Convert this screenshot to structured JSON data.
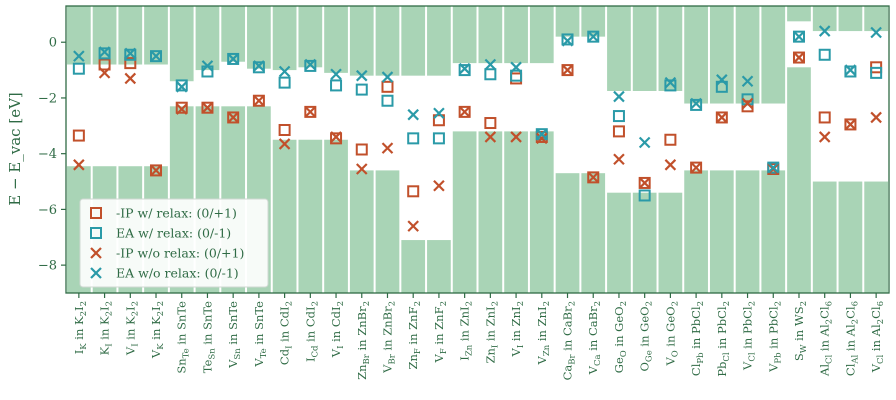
{
  "chart_data": {
    "type": "bar-scatter",
    "ylabel": "E − E_vac [eV]",
    "ylim": [
      -9,
      1.3
    ],
    "yticks": [
      0,
      -2,
      -4,
      -6,
      -8
    ],
    "colors": {
      "bar": "#a9d4b6",
      "ip": "#c1502b",
      "ea": "#2a9aa8",
      "axis": "#2f6b45"
    },
    "legend_position": "lower-left",
    "series": [
      {
        "key": "ip_relax",
        "name": "-IP w/ relax: (0/+1)",
        "marker": "square",
        "color": "#c1502b"
      },
      {
        "key": "ea_relax",
        "name": "EA w/ relax: (0/-1)",
        "marker": "square",
        "color": "#2a9aa8"
      },
      {
        "key": "ip_norelax",
        "name": "-IP w/o relax: (0/+1)",
        "marker": "x",
        "color": "#c1502b"
      },
      {
        "key": "ea_norelax",
        "name": "EA w/o relax: (0/-1)",
        "marker": "x",
        "color": "#2a9aa8"
      }
    ],
    "categories": [
      {
        "def": "I",
        "sub": "K",
        "host": "K",
        "hs": "2",
        "host2": "I",
        "hs2": "2",
        "vbm": -4.45,
        "cbm": -0.8,
        "ip_relax": -3.35,
        "ea_relax": -0.95,
        "ip_norelax": -4.4,
        "ea_norelax": -0.5
      },
      {
        "def": "K",
        "sub": "I",
        "host": "K",
        "hs": "2",
        "host2": "I",
        "hs2": "2",
        "vbm": -4.45,
        "cbm": -0.8,
        "ip_relax": -0.8,
        "ea_relax": -0.4,
        "ip_norelax": -1.1,
        "ea_norelax": -0.35
      },
      {
        "def": "V",
        "sub": "I",
        "host": "K",
        "hs": "2",
        "host2": "I",
        "hs2": "2",
        "vbm": -4.45,
        "cbm": -0.8,
        "ip_relax": -0.75,
        "ea_relax": -0.45,
        "ip_norelax": -1.3,
        "ea_norelax": -0.4
      },
      {
        "def": "V",
        "sub": "K",
        "host": "K",
        "hs": "2",
        "host2": "I",
        "hs2": "2",
        "vbm": -4.45,
        "cbm": -0.8,
        "ip_relax": -4.6,
        "ea_relax": -0.5,
        "ip_norelax": -4.6,
        "ea_norelax": -0.5
      },
      {
        "def": "Sn",
        "sub": "Te",
        "host": "SnTe",
        "hs": "",
        "host2": "",
        "hs2": "",
        "vbm": -2.3,
        "cbm": -1.4,
        "ip_relax": -2.35,
        "ea_relax": -1.55,
        "ip_norelax": -2.4,
        "ea_norelax": -1.6
      },
      {
        "def": "Te",
        "sub": "Sn",
        "host": "SnTe",
        "hs": "",
        "host2": "",
        "hs2": "",
        "vbm": -2.3,
        "cbm": -1.0,
        "ip_relax": -2.35,
        "ea_relax": -1.05,
        "ip_norelax": -2.35,
        "ea_norelax": -0.85
      },
      {
        "def": "V",
        "sub": "Sn",
        "host": "SnTe",
        "hs": "",
        "host2": "",
        "hs2": "",
        "vbm": -2.3,
        "cbm": -0.7,
        "ip_relax": -2.7,
        "ea_relax": -0.6,
        "ip_norelax": -2.7,
        "ea_norelax": -0.6
      },
      {
        "def": "V",
        "sub": "Te",
        "host": "SnTe",
        "hs": "",
        "host2": "",
        "hs2": "",
        "vbm": -2.3,
        "cbm": -0.95,
        "ip_relax": -2.1,
        "ea_relax": -0.9,
        "ip_norelax": -2.1,
        "ea_norelax": -0.85
      },
      {
        "def": "Cd",
        "sub": "I",
        "host": "CdI",
        "hs": "2",
        "host2": "",
        "hs2": "",
        "vbm": -3.5,
        "cbm": -1.0,
        "ip_relax": -3.15,
        "ea_relax": -1.45,
        "ip_norelax": -3.65,
        "ea_norelax": -1.05
      },
      {
        "def": "I",
        "sub": "Cd",
        "host": "CdI",
        "hs": "2",
        "host2": "",
        "hs2": "",
        "vbm": -3.5,
        "cbm": -0.9,
        "ip_relax": -2.5,
        "ea_relax": -0.85,
        "ip_norelax": -2.5,
        "ea_norelax": -0.8
      },
      {
        "def": "V",
        "sub": "I",
        "host": "CdI",
        "hs": "2",
        "host2": "",
        "hs2": "",
        "vbm": -3.5,
        "cbm": -1.1,
        "ip_relax": -3.45,
        "ea_relax": -1.55,
        "ip_norelax": -3.4,
        "ea_norelax": -1.15
      },
      {
        "def": "Zn",
        "sub": "Br",
        "host": "ZnBr",
        "hs": "2",
        "host2": "",
        "hs2": "",
        "vbm": -4.6,
        "cbm": -1.2,
        "ip_relax": -3.85,
        "ea_relax": -1.7,
        "ip_norelax": -4.55,
        "ea_norelax": -1.2
      },
      {
        "def": "V",
        "sub": "Br",
        "host": "ZnBr",
        "hs": "2",
        "host2": "",
        "hs2": "",
        "vbm": -4.6,
        "cbm": -1.2,
        "ip_relax": -1.6,
        "ea_relax": -2.1,
        "ip_norelax": -3.8,
        "ea_norelax": -1.25
      },
      {
        "def": "Zn",
        "sub": "F",
        "host": "ZnF",
        "hs": "2",
        "host2": "",
        "hs2": "",
        "vbm": -7.1,
        "cbm": -1.2,
        "ip_relax": -5.35,
        "ea_relax": -3.45,
        "ip_norelax": -6.6,
        "ea_norelax": -2.6
      },
      {
        "def": "V",
        "sub": "F",
        "host": "ZnF",
        "hs": "2",
        "host2": "",
        "hs2": "",
        "vbm": -7.1,
        "cbm": -1.2,
        "ip_relax": -2.8,
        "ea_relax": -3.45,
        "ip_norelax": -5.15,
        "ea_norelax": -2.55
      },
      {
        "def": "I",
        "sub": "Zn",
        "host": "ZnI",
        "hs": "2",
        "host2": "",
        "hs2": "",
        "vbm": -3.2,
        "cbm": -0.75,
        "ip_relax": -2.5,
        "ea_relax": -1.0,
        "ip_norelax": -2.5,
        "ea_norelax": -0.95
      },
      {
        "def": "Zn",
        "sub": "I",
        "host": "ZnI",
        "hs": "2",
        "host2": "",
        "hs2": "",
        "vbm": -3.2,
        "cbm": -0.75,
        "ip_relax": -2.9,
        "ea_relax": -1.15,
        "ip_norelax": -3.4,
        "ea_norelax": -0.8
      },
      {
        "def": "V",
        "sub": "I",
        "host": "ZnI",
        "hs": "2",
        "host2": "",
        "hs2": "",
        "vbm": -3.2,
        "cbm": -0.75,
        "ip_relax": -1.3,
        "ea_relax": -1.2,
        "ip_norelax": -3.4,
        "ea_norelax": -0.9
      },
      {
        "def": "V",
        "sub": "Zn",
        "host": "ZnI",
        "hs": "2",
        "host2": "",
        "hs2": "",
        "vbm": -3.2,
        "cbm": -0.75,
        "ip_relax": -3.4,
        "ea_relax": -3.3,
        "ip_norelax": -3.45,
        "ea_norelax": -3.3
      },
      {
        "def": "Ca",
        "sub": "Br",
        "host": "CaBr",
        "hs": "2",
        "host2": "",
        "hs2": "",
        "vbm": -4.7,
        "cbm": 0.2,
        "ip_relax": -1.0,
        "ea_relax": 0.1,
        "ip_norelax": -1.0,
        "ea_norelax": 0.05
      },
      {
        "def": "V",
        "sub": "Ca",
        "host": "CaBr",
        "hs": "2",
        "host2": "",
        "hs2": "",
        "vbm": -4.7,
        "cbm": 0.2,
        "ip_relax": -4.85,
        "ea_relax": 0.2,
        "ip_norelax": -4.85,
        "ea_norelax": 0.2
      },
      {
        "def": "Ge",
        "sub": "O",
        "host": "GeO",
        "hs": "2",
        "host2": "",
        "hs2": "",
        "vbm": -5.4,
        "cbm": -1.75,
        "ip_relax": -3.2,
        "ea_relax": -2.65,
        "ip_norelax": -4.2,
        "ea_norelax": -1.95
      },
      {
        "def": "O",
        "sub": "Ge",
        "host": "GeO",
        "hs": "2",
        "host2": "",
        "hs2": "",
        "vbm": -5.4,
        "cbm": -1.75,
        "ip_relax": -5.05,
        "ea_relax": -5.5,
        "ip_norelax": -5.05,
        "ea_norelax": -3.6
      },
      {
        "def": "V",
        "sub": "O",
        "host": "GeO",
        "hs": "2",
        "host2": "",
        "hs2": "",
        "vbm": -5.4,
        "cbm": -1.75,
        "ip_relax": -3.5,
        "ea_relax": -1.55,
        "ip_norelax": -4.4,
        "ea_norelax": -1.45
      },
      {
        "def": "Cl",
        "sub": "Pb",
        "host": "PbCl",
        "hs": "2",
        "host2": "",
        "hs2": "",
        "vbm": -4.6,
        "cbm": -2.2,
        "ip_relax": -4.5,
        "ea_relax": -2.25,
        "ip_norelax": -4.5,
        "ea_norelax": -2.2
      },
      {
        "def": "Pb",
        "sub": "Cl",
        "host": "PbCl",
        "hs": "2",
        "host2": "",
        "hs2": "",
        "vbm": -4.6,
        "cbm": -2.2,
        "ip_relax": -2.7,
        "ea_relax": -1.6,
        "ip_norelax": -2.7,
        "ea_norelax": -1.35
      },
      {
        "def": "V",
        "sub": "Cl",
        "host": "PbCl",
        "hs": "2",
        "host2": "",
        "hs2": "",
        "vbm": -4.6,
        "cbm": -2.2,
        "ip_relax": -2.3,
        "ea_relax": -2.05,
        "ip_norelax": -2.2,
        "ea_norelax": -1.4
      },
      {
        "def": "V",
        "sub": "Pb",
        "host": "PbCl",
        "hs": "2",
        "host2": "",
        "hs2": "",
        "vbm": -4.6,
        "cbm": -2.2,
        "ip_relax": -4.55,
        "ea_relax": -4.5,
        "ip_norelax": -4.55,
        "ea_norelax": -4.5
      },
      {
        "def": "S",
        "sub": "W",
        "host": "WS",
        "hs": "2",
        "host2": "",
        "hs2": "",
        "vbm": -0.9,
        "cbm": 0.75,
        "ip_relax": -0.55,
        "ea_relax": 0.2,
        "ip_norelax": -0.55,
        "ea_norelax": 0.2
      },
      {
        "def": "Al",
        "sub": "Cl",
        "host": "Al",
        "hs": "2",
        "host2": "Cl",
        "hs2": "6",
        "vbm": -5.0,
        "cbm": 0.4,
        "ip_relax": -2.7,
        "ea_relax": -0.45,
        "ip_norelax": -3.4,
        "ea_norelax": 0.4
      },
      {
        "def": "Cl",
        "sub": "Al",
        "host": "Al",
        "hs": "2",
        "host2": "Cl",
        "hs2": "6",
        "vbm": -5.0,
        "cbm": 0.4,
        "ip_relax": -2.95,
        "ea_relax": -1.05,
        "ip_norelax": -2.95,
        "ea_norelax": -1.0
      },
      {
        "def": "V",
        "sub": "Cl",
        "host": "Al",
        "hs": "2",
        "host2": "Cl",
        "hs2": "6",
        "vbm": -5.0,
        "cbm": 0.4,
        "ip_relax": -0.9,
        "ea_relax": -1.1,
        "ip_norelax": -2.7,
        "ea_norelax": 0.35
      }
    ]
  }
}
